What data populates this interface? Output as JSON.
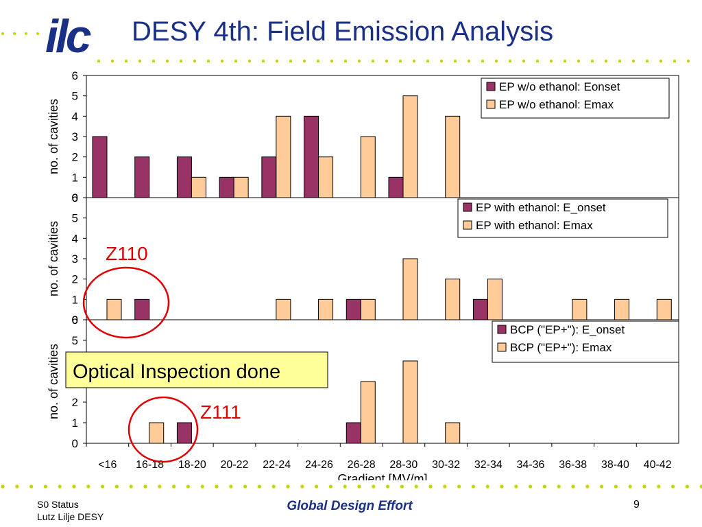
{
  "slide": {
    "title": "DESY 4th: Field Emission Analysis",
    "logo_text": "ilc",
    "footer_left_line1": "S0 Status",
    "footer_left_line2": "Lutz Lilje DESY",
    "footer_center": "Global Design Effort",
    "page_number": "9"
  },
  "colors": {
    "title": "#1a2f86",
    "onset_bar": "#993366",
    "emax_bar": "#ffcc99",
    "annotation_red": "#e00000",
    "callout_bg": "#ffff99",
    "dots": "#c8d400"
  },
  "annotations": {
    "z110": "Z110",
    "z111": "Z111",
    "callout": "Optical Inspection done"
  },
  "chart_data": [
    {
      "type": "bar",
      "categories": [
        "<16",
        "16-18",
        "18-20",
        "20-22",
        "22-24",
        "24-26",
        "26-28",
        "28-30",
        "30-32",
        "32-34",
        "34-36",
        "36-38",
        "38-40",
        "40-42"
      ],
      "series": [
        {
          "name": "EP w/o ethanol: Eonset",
          "values": [
            3,
            2,
            2,
            1,
            2,
            4,
            0,
            1,
            0,
            0,
            0,
            0,
            0,
            0
          ]
        },
        {
          "name": "EP w/o ethanol: Emax",
          "values": [
            0,
            0,
            1,
            1,
            4,
            2,
            3,
            5,
            4,
            0,
            0,
            0,
            0,
            0
          ]
        }
      ],
      "ylabel": "no. of cavities",
      "yticks": [
        "0",
        "1",
        "2",
        "3",
        "4",
        "5",
        "6"
      ],
      "ylim": [
        0,
        6
      ],
      "legend": "top-right",
      "grid": false
    },
    {
      "type": "bar",
      "categories": [
        "<16",
        "16-18",
        "18-20",
        "20-22",
        "22-24",
        "24-26",
        "26-28",
        "28-30",
        "30-32",
        "32-34",
        "34-36",
        "36-38",
        "38-40",
        "40-42"
      ],
      "series": [
        {
          "name": "EP with ethanol: E_onset",
          "values": [
            0,
            1,
            0,
            0,
            0,
            0,
            1,
            0,
            0,
            1,
            0,
            0,
            0,
            0
          ]
        },
        {
          "name": "EP with ethanol: Emax",
          "values": [
            1,
            0,
            0,
            0,
            1,
            1,
            1,
            3,
            2,
            2,
            0,
            1,
            1,
            1
          ]
        }
      ],
      "ylabel": "no. of cavities",
      "yticks": [
        "0",
        "1",
        "2",
        "3",
        "4",
        "5",
        "6"
      ],
      "ylim": [
        0,
        6
      ],
      "legend": "top-right",
      "grid": false
    },
    {
      "type": "bar",
      "categories": [
        "<16",
        "16-18",
        "18-20",
        "20-22",
        "22-24",
        "24-26",
        "26-28",
        "28-30",
        "30-32",
        "32-34",
        "34-36",
        "36-38",
        "38-40",
        "40-42"
      ],
      "series": [
        {
          "name": "BCP (\"EP+\"): E_onset",
          "values": [
            0,
            0,
            1,
            0,
            0,
            0,
            1,
            0,
            0,
            0,
            0,
            0,
            0,
            0
          ]
        },
        {
          "name": "BCP (\"EP+\"): Emax",
          "values": [
            0,
            1,
            0,
            0,
            0,
            0,
            3,
            4,
            1,
            0,
            0,
            0,
            0,
            0
          ]
        }
      ],
      "ylabel": "no. of cavities",
      "yticks": [
        "0",
        "1",
        "2",
        "3",
        "4",
        "5",
        "6"
      ],
      "ylim": [
        0,
        6
      ],
      "xlabel": "Gradient [MV/m]",
      "legend": "top-right",
      "grid": false
    }
  ]
}
